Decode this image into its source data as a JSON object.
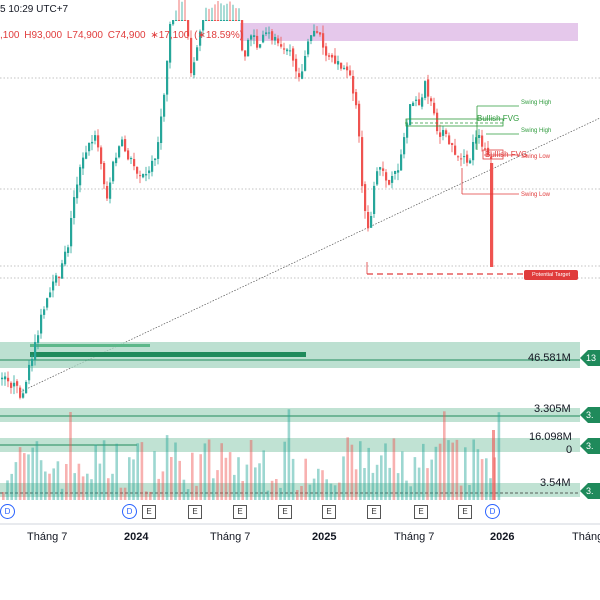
{
  "header": {
    "time_text": "5 10:29 UTC+7",
    "ohlc": [
      ",100",
      "H93,000",
      "L74,900",
      "C74,900",
      "∗17,100",
      "(∗18.59%)"
    ]
  },
  "colors": {
    "up": "#26a69a",
    "down": "#ef5350",
    "fvg_zone": "#e1bee7",
    "volume_zone": "#a5d6c1",
    "accent_green": "#1f8a5b",
    "target_red": "#e03c3c"
  },
  "annotations": {
    "bullish_fvg_1": "Bullish FVG",
    "bullish_fvg_2": "Bullish FVG",
    "swing_high_1": "Swing High",
    "swing_high_2": "Swing High",
    "swing_low_1": "Swing Low",
    "swing_low_2": "Swing Low",
    "potential_target": "Potential Target"
  },
  "volume_labels": {
    "v1": "46.581M",
    "v2": "3.305M",
    "v3": "16.098M",
    "v4": "0",
    "v5": "3.54M"
  },
  "right_tags": [
    "13",
    "3.",
    "3.",
    "3."
  ],
  "chart_data": {
    "type": "candlestick",
    "x_labels": [
      "Tháng 7",
      "2024",
      "Tháng 7",
      "2025",
      "Tháng 7",
      "2026",
      "Tháng"
    ],
    "x_label_bold": [
      false,
      true,
      false,
      true,
      false,
      true,
      false
    ],
    "event_markers": [
      "D",
      "D",
      "E",
      "E",
      "E",
      "E",
      "E",
      "E",
      "E",
      "E",
      "D"
    ],
    "last_close": 74900,
    "grid": false
  }
}
